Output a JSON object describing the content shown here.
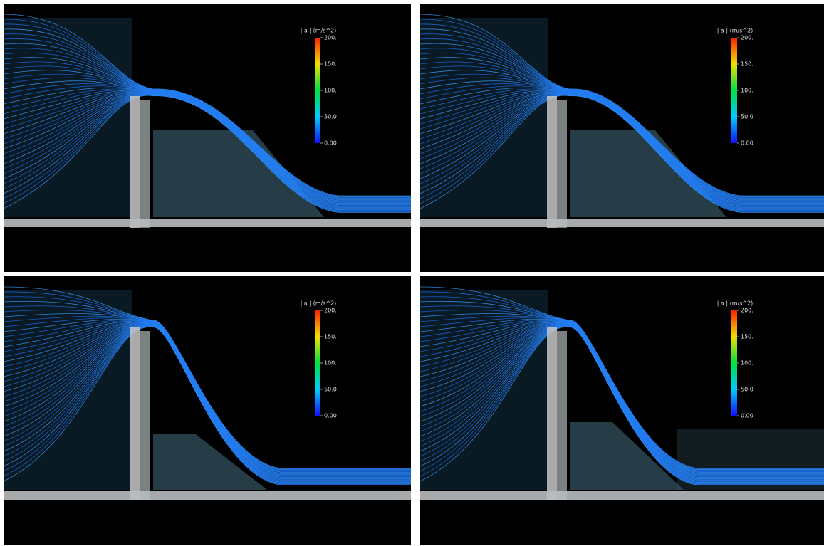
{
  "panels": [
    {
      "colorbar": {
        "title": "| a | (m/s^2)",
        "ticks": [
          "200.",
          "150.",
          "100.",
          "50.0",
          "0.00"
        ]
      }
    },
    {
      "colorbar": {
        "title": "| a | (m/s^2)",
        "ticks": [
          "200.",
          "150.",
          "100.",
          "50.0",
          "0.00"
        ]
      }
    },
    {
      "colorbar": {
        "title": "| a | (m/s^2)",
        "ticks": [
          "200.",
          "150.",
          "100.",
          "50.0",
          "0.00"
        ]
      }
    },
    {
      "colorbar": {
        "title": "| a | (m/s^2)",
        "ticks": [
          "200.",
          "150.",
          "100.",
          "50.0",
          "0.00"
        ]
      }
    }
  ]
}
